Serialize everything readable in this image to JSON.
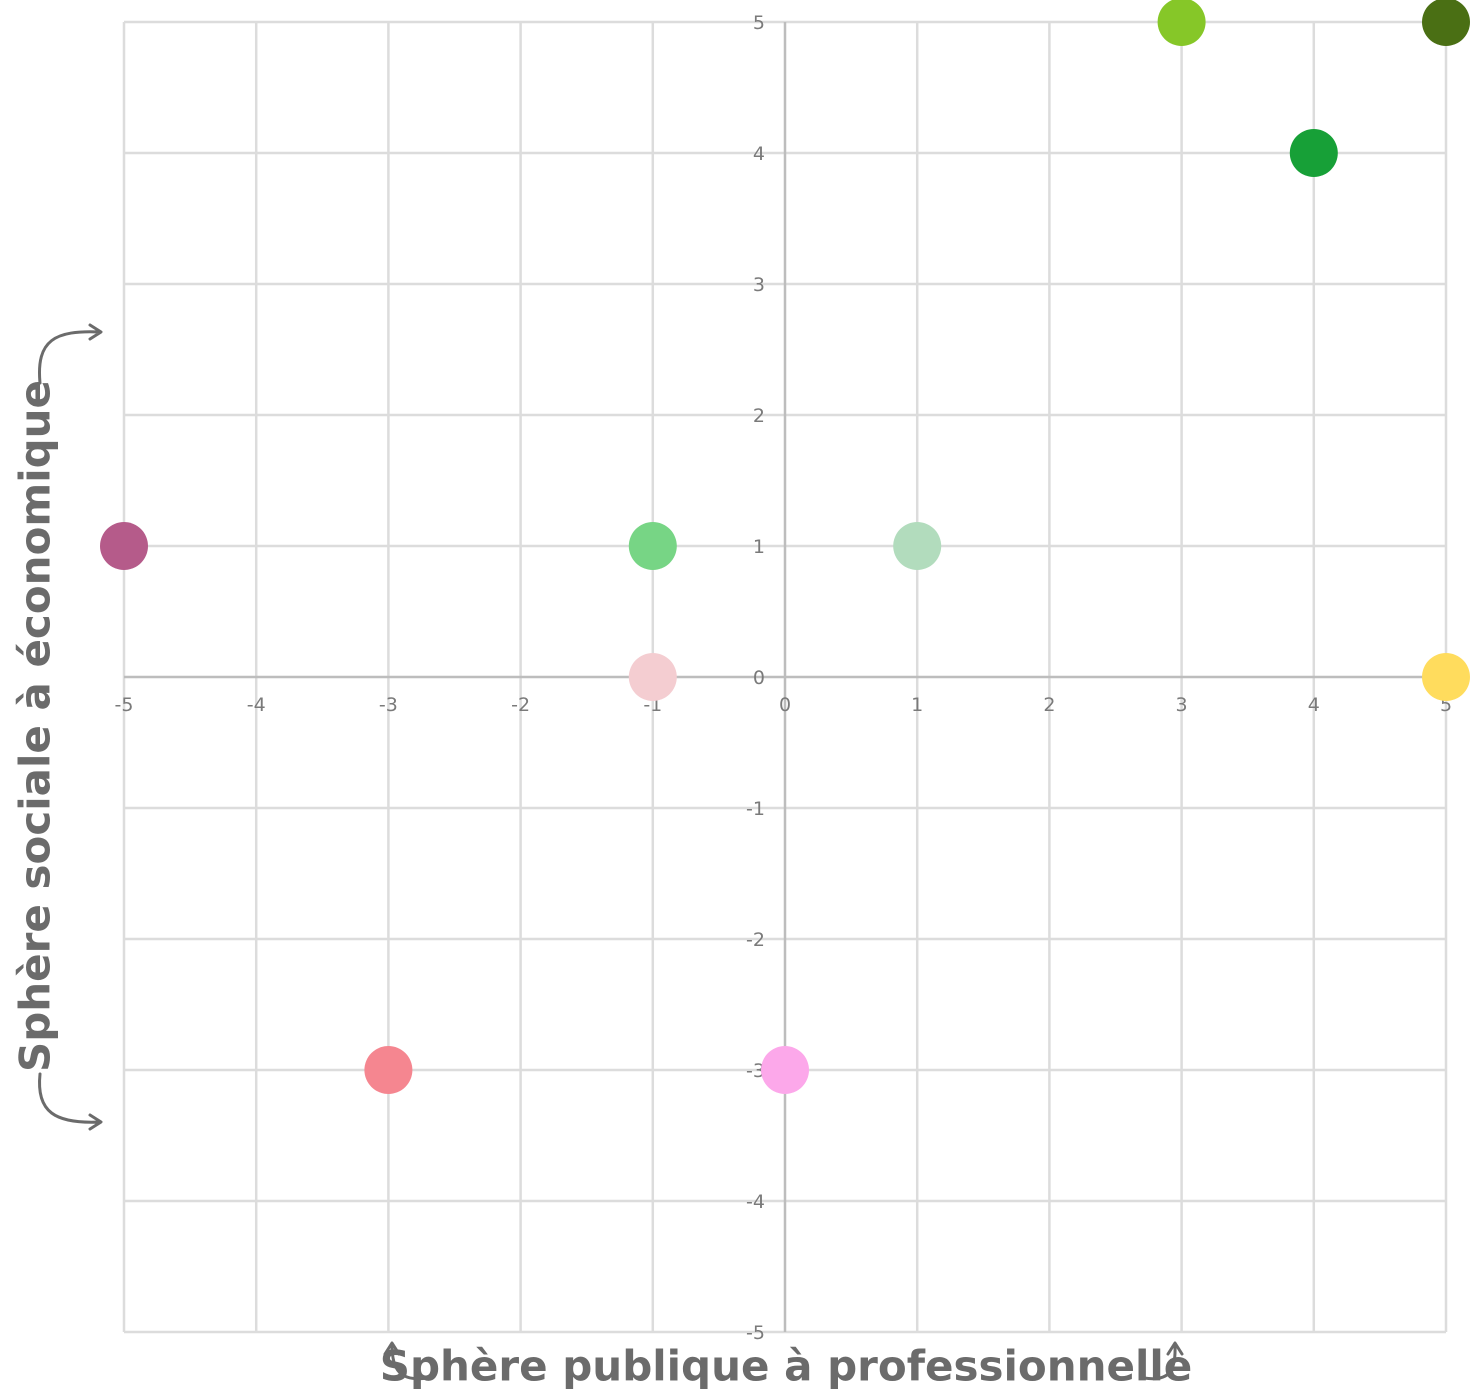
{
  "chart_data": {
    "type": "scatter",
    "title": "",
    "xlabel": "Sphère publique à professionnelle",
    "ylabel": "Sphère sociale à économique",
    "xlim": [
      -5,
      5
    ],
    "ylim": [
      -5,
      5
    ],
    "grid": true,
    "legend": "none",
    "x_ticks": [
      "-5",
      "-4",
      "-3",
      "-2",
      "-1",
      "0",
      "1",
      "2",
      "3",
      "4",
      "5"
    ],
    "y_ticks": [
      "5",
      "4",
      "3",
      "2",
      "1",
      "0",
      "-1",
      "-2",
      "-3",
      "-4",
      "-5"
    ],
    "points": [
      {
        "x": 3,
        "y": 5,
        "color": "#86c728"
      },
      {
        "x": 5,
        "y": 5,
        "color": "#4a6f14"
      },
      {
        "x": 4,
        "y": 4,
        "color": "#17a037"
      },
      {
        "x": -5,
        "y": 1,
        "color": "#b55b8a"
      },
      {
        "x": -1,
        "y": 1,
        "color": "#77d585"
      },
      {
        "x": 1,
        "y": 1,
        "color": "#b2dcbd"
      },
      {
        "x": -1,
        "y": 0,
        "color": "#f4cdd1"
      },
      {
        "x": 5,
        "y": 0,
        "color": "#ffdc5d"
      },
      {
        "x": -3,
        "y": -3,
        "color": "#f58690"
      },
      {
        "x": 0,
        "y": -3,
        "color": "#fca8ea"
      }
    ]
  }
}
